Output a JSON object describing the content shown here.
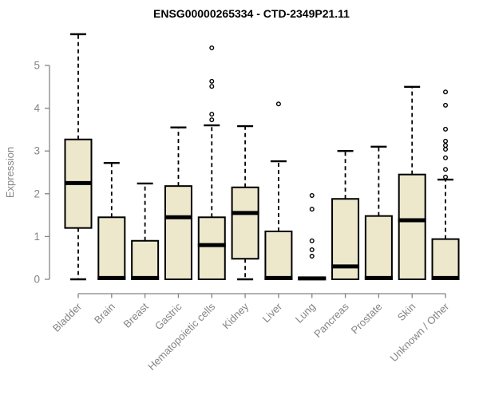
{
  "chart_data": {
    "type": "boxplot",
    "title": "ENSG00000265334 - CTD-2349P21.11",
    "ylabel": "Expression",
    "xlabel": "",
    "ylim": [
      0,
      5.9
    ],
    "yticks": [
      0,
      1,
      2,
      3,
      4,
      5
    ],
    "grid": false,
    "legend": "none",
    "colors": {
      "box_fill": "#EDE8CC",
      "box_stroke": "#000000",
      "axis": "#848484",
      "title": "#000000",
      "background": "#ffffff"
    },
    "categories": [
      "Bladder",
      "Brain",
      "Breast",
      "Gastric",
      "Hematopoietic cells",
      "Kidney",
      "Liver",
      "Lung",
      "Pancreas",
      "Prostate",
      "Skin",
      "Unknown / Other"
    ],
    "boxes": [
      {
        "category": "Bladder",
        "min": 0,
        "q1": 1.2,
        "median": 2.25,
        "q3": 3.27,
        "max": 5.73,
        "outliers": []
      },
      {
        "category": "Brain",
        "min": 0,
        "q1": 0,
        "median": 0.03,
        "q3": 1.45,
        "max": 2.72,
        "outliers": []
      },
      {
        "category": "Breast",
        "min": 0,
        "q1": 0,
        "median": 0.03,
        "q3": 0.9,
        "max": 2.24,
        "outliers": []
      },
      {
        "category": "Gastric",
        "min": 0,
        "q1": 0,
        "median": 1.45,
        "q3": 2.18,
        "max": 3.55,
        "outliers": []
      },
      {
        "category": "Hematopoietic cells",
        "min": 0,
        "q1": 0,
        "median": 0.8,
        "q3": 1.45,
        "max": 3.6,
        "outliers": [
          3.73,
          3.86,
          4.51,
          4.63,
          5.41
        ]
      },
      {
        "category": "Kidney",
        "min": 0,
        "q1": 0.48,
        "median": 1.55,
        "q3": 2.15,
        "max": 3.58,
        "outliers": []
      },
      {
        "category": "Liver",
        "min": 0,
        "q1": 0,
        "median": 0.03,
        "q3": 1.12,
        "max": 2.76,
        "outliers": [
          4.1
        ]
      },
      {
        "category": "Lung",
        "min": 0,
        "q1": 0,
        "median": 0.02,
        "q3": 0.04,
        "max": 0.04,
        "outliers": [
          0.54,
          0.69,
          0.9,
          1.64,
          1.96
        ]
      },
      {
        "category": "Pancreas",
        "min": 0,
        "q1": 0,
        "median": 0.3,
        "q3": 1.88,
        "max": 3.0,
        "outliers": []
      },
      {
        "category": "Prostate",
        "min": 0,
        "q1": 0,
        "median": 0.03,
        "q3": 1.48,
        "max": 3.1,
        "outliers": []
      },
      {
        "category": "Skin",
        "min": 0,
        "q1": 0,
        "median": 1.38,
        "q3": 2.45,
        "max": 4.5,
        "outliers": []
      },
      {
        "category": "Unknown / Other",
        "min": 0,
        "q1": 0,
        "median": 0.03,
        "q3": 0.94,
        "max": 2.33,
        "outliers": [
          2.39,
          2.57,
          2.84,
          3.04,
          3.13,
          3.23,
          3.51,
          4.07,
          4.38
        ]
      }
    ]
  }
}
